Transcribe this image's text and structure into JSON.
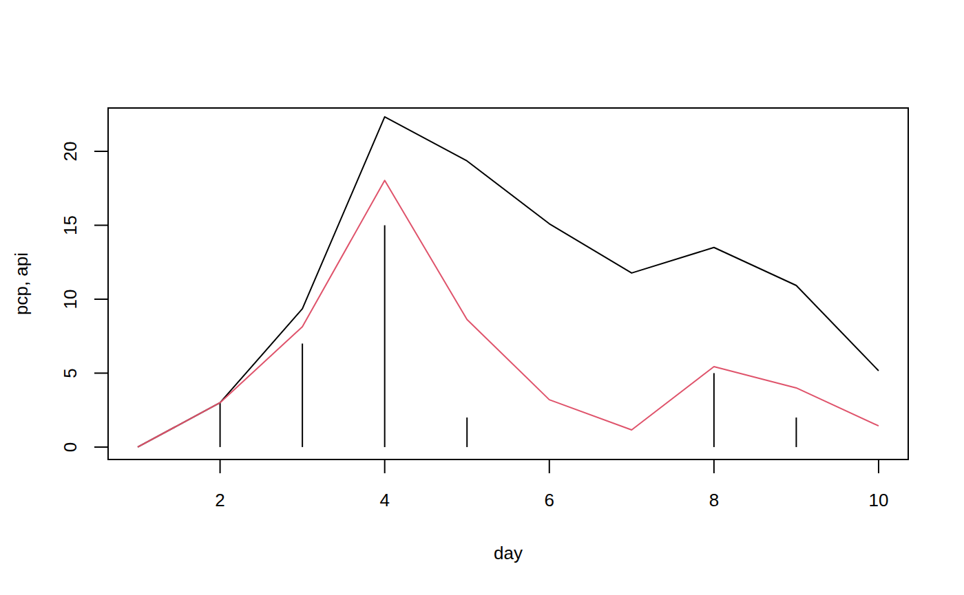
{
  "chart_data": {
    "type": "line",
    "x_label": "day",
    "y_label": "pcp, api",
    "x": [
      1,
      2,
      3,
      4,
      5,
      6,
      7,
      8,
      9,
      10
    ],
    "series": [
      {
        "type": "spike",
        "color": "#000000",
        "values": [
          0,
          3,
          7,
          15,
          2,
          0,
          0,
          5,
          2,
          0
        ]
      },
      {
        "type": "line",
        "color": "#000000",
        "values": [
          0,
          3,
          9.35,
          22.33,
          19.35,
          15.1,
          11.77,
          13.5,
          10.93,
          5.16
        ]
      },
      {
        "type": "line",
        "color": "#DF536B",
        "values": [
          0,
          3,
          8.14,
          18.03,
          8.63,
          3.2,
          1.16,
          5.44,
          4.0,
          1.43
        ]
      }
    ],
    "xlim": [
      0.64,
      10.36
    ],
    "ylim": [
      -0.84,
      22.93
    ],
    "xticks": [
      2,
      4,
      6,
      8,
      10
    ],
    "yticks": [
      0,
      5,
      10,
      15,
      20
    ]
  }
}
